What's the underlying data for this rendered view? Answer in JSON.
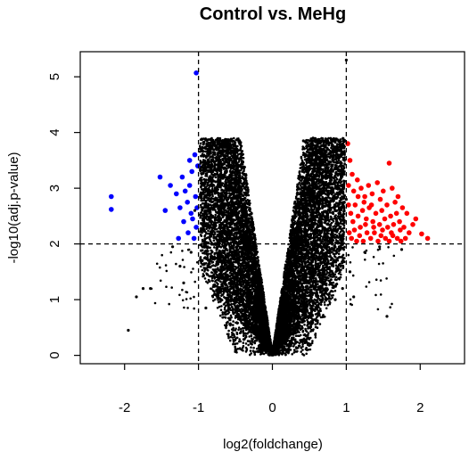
{
  "chart_data": {
    "type": "scatter",
    "title": "Control vs. MeHg",
    "xlabel": "log2(foldchange)",
    "ylabel": "-log10(adj.p-value)",
    "xlim": [
      -2.6,
      2.6
    ],
    "ylim": [
      -0.15,
      5.45
    ],
    "x_ticks": [
      -2,
      -1,
      0,
      1,
      2
    ],
    "y_ticks": [
      0,
      1,
      2,
      3,
      4,
      5
    ],
    "grid": false,
    "thresholds": {
      "x": [
        -1,
        1
      ],
      "y": 2
    },
    "colors": {
      "down": "#0000ff",
      "up": "#ff0000",
      "ns": "#000000",
      "axis": "#000000"
    },
    "series": [
      {
        "color": "#0000ff",
        "points": [
          [
            -2.18,
            2.85
          ],
          [
            -2.18,
            2.62
          ],
          [
            -1.52,
            3.2
          ],
          [
            -1.45,
            2.6
          ],
          [
            -1.38,
            3.05
          ],
          [
            -1.3,
            2.9
          ],
          [
            -1.25,
            2.65
          ],
          [
            -1.22,
            3.2
          ],
          [
            -1.2,
            2.4
          ],
          [
            -1.18,
            2.95
          ],
          [
            -1.15,
            2.75
          ],
          [
            -1.14,
            2.2
          ],
          [
            -1.12,
            3.05
          ],
          [
            -1.1,
            2.55
          ],
          [
            -1.09,
            3.3
          ],
          [
            -1.08,
            2.45
          ],
          [
            -1.06,
            2.1
          ],
          [
            -1.05,
            3.6
          ],
          [
            -1.04,
            2.85
          ],
          [
            -1.03,
            2.3
          ],
          [
            -1.02,
            2.65
          ],
          [
            -1.01,
            3.4
          ],
          [
            -1.03,
            5.07
          ],
          [
            -1.27,
            2.1
          ],
          [
            -1.12,
            3.5
          ]
        ]
      },
      {
        "color": "#ff0000",
        "points": [
          [
            1.02,
            3.8
          ],
          [
            1.05,
            3.5
          ],
          [
            1.08,
            3.25
          ],
          [
            1.03,
            3.05
          ],
          [
            1.1,
            2.95
          ],
          [
            1.15,
            3.15
          ],
          [
            1.2,
            3.0
          ],
          [
            1.25,
            2.85
          ],
          [
            1.3,
            3.05
          ],
          [
            1.35,
            2.9
          ],
          [
            1.42,
            3.1
          ],
          [
            1.5,
            2.95
          ],
          [
            1.58,
            3.45
          ],
          [
            1.62,
            3.0
          ],
          [
            1.7,
            2.85
          ],
          [
            1.03,
            2.7
          ],
          [
            1.06,
            2.55
          ],
          [
            1.09,
            2.4
          ],
          [
            1.12,
            2.7
          ],
          [
            1.16,
            2.5
          ],
          [
            1.19,
            2.3
          ],
          [
            1.22,
            2.6
          ],
          [
            1.27,
            2.45
          ],
          [
            1.31,
            2.65
          ],
          [
            1.36,
            2.4
          ],
          [
            1.4,
            2.55
          ],
          [
            1.45,
            2.35
          ],
          [
            1.48,
            2.6
          ],
          [
            1.52,
            2.45
          ],
          [
            1.56,
            2.3
          ],
          [
            1.6,
            2.5
          ],
          [
            1.64,
            2.35
          ],
          [
            1.68,
            2.55
          ],
          [
            1.72,
            2.4
          ],
          [
            1.78,
            2.3
          ],
          [
            1.85,
            2.2
          ],
          [
            1.9,
            2.35
          ],
          [
            2.02,
            2.18
          ],
          [
            2.1,
            2.1
          ],
          [
            1.04,
            2.2
          ],
          [
            1.07,
            2.1
          ],
          [
            1.11,
            2.25
          ],
          [
            1.14,
            2.05
          ],
          [
            1.18,
            2.15
          ],
          [
            1.23,
            2.05
          ],
          [
            1.28,
            2.2
          ],
          [
            1.33,
            2.1
          ],
          [
            1.38,
            2.2
          ],
          [
            1.43,
            2.05
          ],
          [
            1.47,
            2.15
          ],
          [
            1.53,
            2.1
          ],
          [
            1.58,
            2.05
          ],
          [
            1.63,
            2.15
          ],
          [
            1.69,
            2.1
          ],
          [
            1.74,
            2.05
          ],
          [
            1.8,
            2.1
          ],
          [
            1.16,
            2.85
          ],
          [
            1.24,
            2.75
          ],
          [
            1.34,
            2.7
          ],
          [
            1.46,
            2.8
          ],
          [
            1.55,
            2.7
          ],
          [
            1.66,
            2.75
          ],
          [
            1.76,
            2.65
          ],
          [
            1.82,
            2.55
          ],
          [
            1.94,
            2.45
          ],
          [
            1.26,
            2.35
          ],
          [
            1.37,
            2.3
          ],
          [
            1.49,
            2.25
          ],
          [
            1.61,
            2.2
          ],
          [
            1.73,
            2.25
          ]
        ]
      },
      {
        "color": "#000000",
        "points": [
          [
            -0.78,
            1.1
          ],
          [
            -0.9,
            0.85
          ],
          [
            -1.2,
            1.3
          ],
          [
            -1.75,
            1.2
          ],
          [
            -1.84,
            1.05
          ],
          [
            -1.65,
            1.2
          ],
          [
            -1.95,
            0.45
          ],
          [
            -0.95,
            1.7
          ],
          [
            -1.1,
            1.85
          ],
          [
            -1.35,
            1.95
          ],
          [
            -1.25,
            1.6
          ],
          [
            -0.88,
            1.45
          ],
          [
            1.55,
            0.7
          ],
          [
            1.05,
            1.5
          ],
          [
            1.25,
            1.85
          ],
          [
            1.45,
            1.95
          ],
          [
            1.75,
            1.9
          ],
          [
            0.95,
            1.2
          ],
          [
            1.1,
            1.05
          ],
          [
            0.85,
            1.0
          ],
          [
            1.0,
            5.3
          ],
          [
            -0.55,
            3.85
          ],
          [
            -0.48,
            3.7
          ],
          [
            0.42,
            3.85
          ],
          [
            0.55,
            3.9
          ],
          [
            0.6,
            3.6
          ],
          [
            -0.62,
            3.5
          ],
          [
            -1.05,
            2.6
          ],
          [
            1.0,
            2.8
          ],
          [
            -0.6,
            0.95
          ],
          [
            0.62,
            0.9
          ]
        ]
      }
    ],
    "ns_cloud": {
      "color": "#000000",
      "note": ""
    }
  }
}
